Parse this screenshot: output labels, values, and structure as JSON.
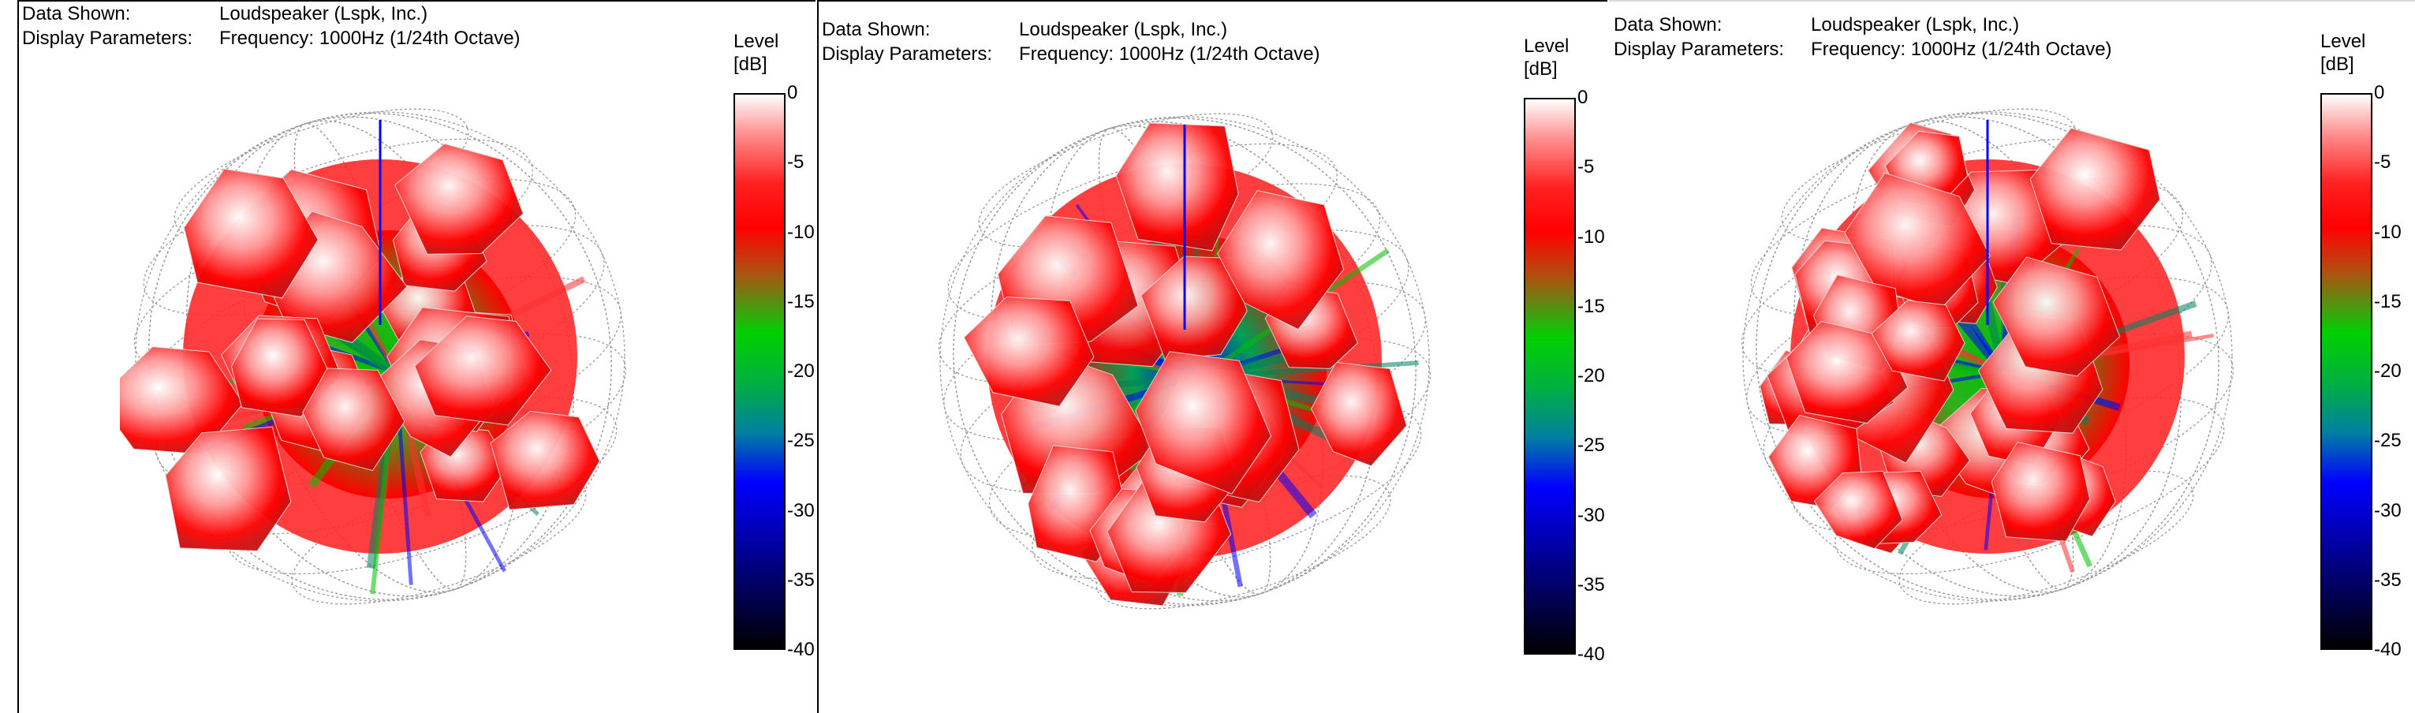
{
  "panels": [
    {
      "header": {
        "data_label": "Data Shown:",
        "data_value": "Loudspeaker (Lspk, Inc.)",
        "params_label": "Display Parameters:",
        "params_value": "Frequency: 1000Hz (1/24th Octave)"
      },
      "legend": {
        "title_1": "Level",
        "title_2": "[dB]",
        "ticks": [
          "0",
          "-5",
          "-10",
          "-15",
          "-20",
          "-25",
          "-30",
          "-35",
          "-40"
        ]
      }
    },
    {
      "header": {
        "data_label": "Data Shown:",
        "data_value": "Loudspeaker (Lspk, Inc.)",
        "params_label": "Display Parameters:",
        "params_value": "Frequency: 1000Hz (1/24th Octave)"
      },
      "legend": {
        "title_1": "Level",
        "title_2": "[dB]",
        "ticks": [
          "0",
          "-5",
          "-10",
          "-15",
          "-20",
          "-25",
          "-30",
          "-35",
          "-40"
        ]
      }
    },
    {
      "header": {
        "data_label": "Data Shown:",
        "data_value": "Loudspeaker (Lspk, Inc.)",
        "params_label": "Display Parameters:",
        "params_value": "Frequency: 1000Hz (1/24th Octave)"
      },
      "legend": {
        "title_1": "Level",
        "title_2": "[dB]",
        "ticks": [
          "0",
          "-5",
          "-10",
          "-15",
          "-20",
          "-25",
          "-30",
          "-35",
          "-40"
        ]
      }
    }
  ],
  "colors": {
    "level_high": "#ffffff",
    "level_mid": "#ff0000",
    "level_low_mid": "#00c000",
    "level_low": "#0000ff",
    "level_min": "#000000",
    "axis": "#0000ff",
    "grid": "#9a9a9a"
  }
}
